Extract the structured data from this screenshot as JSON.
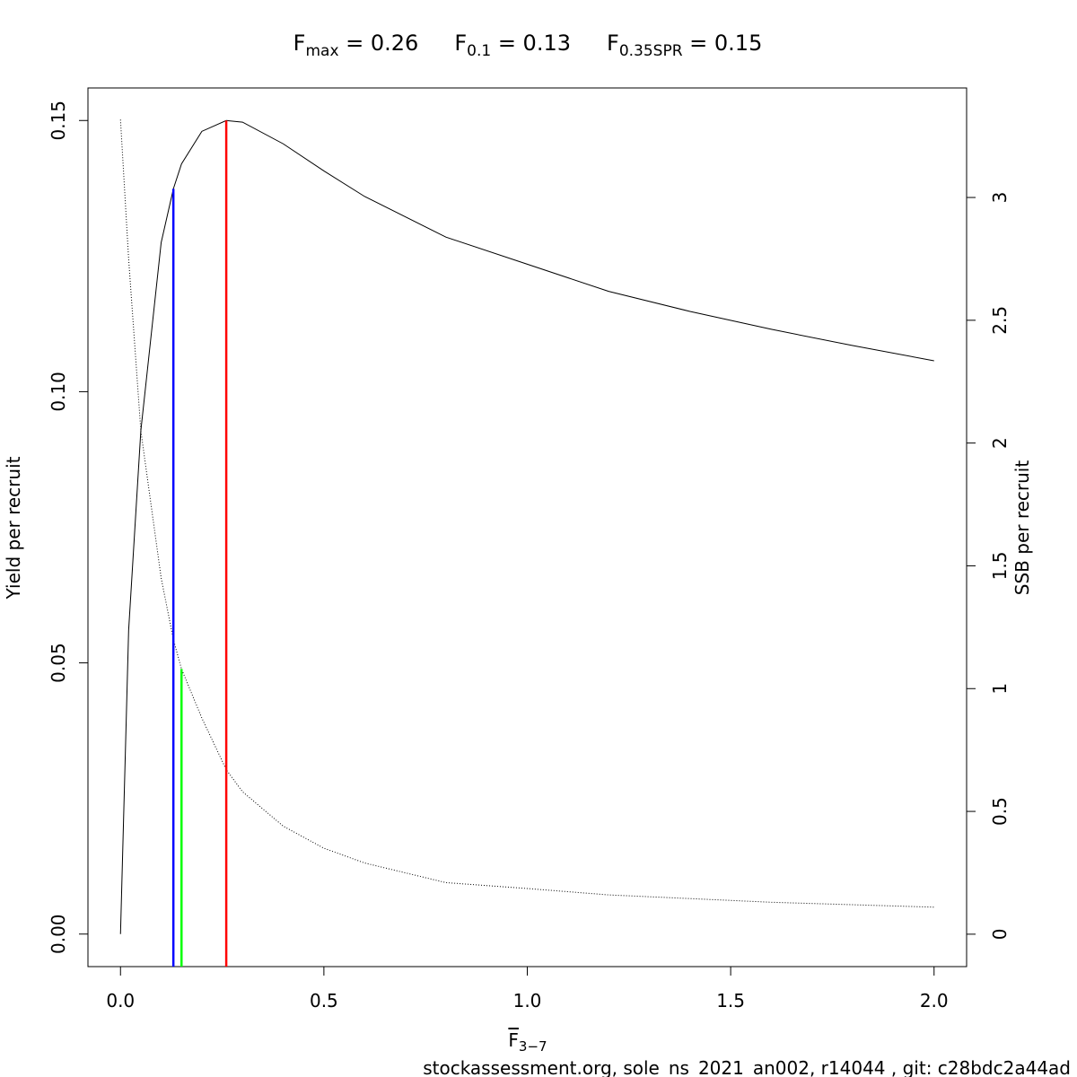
{
  "chart_data": {
    "type": "line",
    "title_parts": [
      {
        "symbol": "F",
        "sub": "max",
        "rest": " = 0.26"
      },
      {
        "symbol": "F",
        "sub": "0.1",
        "rest": " = 0.13"
      },
      {
        "symbol": "F",
        "sub": "0.35SPR",
        "rest": " = 0.15"
      }
    ],
    "xlabel": {
      "symbol": "F",
      "sub": "3−7",
      "overline": true
    },
    "ylabel": "Yield per recruit",
    "y2label": "SSB per recruit",
    "footer": "stockassessment.org, sole_ns_2021_an002, r14044 , git: c28bdc2a44ad",
    "x": [
      0,
      0.02,
      0.05,
      0.1,
      0.13,
      0.15,
      0.2,
      0.26,
      0.3,
      0.4,
      0.5,
      0.6,
      0.8,
      1.0,
      1.2,
      1.4,
      1.6,
      1.8,
      2.0
    ],
    "series": [
      {
        "color": "#000000",
        "linestyle": "solid",
        "axis": "y",
        "values": [
          0,
          0.056,
          0.0928,
          0.1275,
          0.1374,
          0.142,
          0.148,
          0.15,
          0.1497,
          0.1457,
          0.1407,
          0.136,
          0.1285,
          0.1235,
          0.1185,
          0.1148,
          0.1115,
          0.1085,
          0.1057
        ]
      },
      {
        "color": "#000000",
        "linestyle": "dotted",
        "axis": "y2",
        "values": [
          3.317,
          2.75,
          2.05,
          1.45,
          1.2,
          1.08,
          0.88,
          0.67,
          0.58,
          0.44,
          0.35,
          0.29,
          0.21,
          0.186,
          0.16,
          0.145,
          0.13,
          0.12,
          0.11
        ]
      }
    ],
    "reference_lines": [
      {
        "x": 0.13,
        "top": 0.1374,
        "axis": "y",
        "color": "#0000ff"
      },
      {
        "x": 0.15,
        "top": 1.08,
        "axis": "y2",
        "color": "#00ff00"
      },
      {
        "x": 0.26,
        "top": 0.15,
        "axis": "y",
        "color": "#ff0000"
      }
    ],
    "xlim": [
      -0.08,
      2.08
    ],
    "ylim": [
      -0.006,
      0.156
    ],
    "y2lim": [
      -0.132,
      3.446
    ],
    "xticks": [
      {
        "value": 0,
        "label": "0.0"
      },
      {
        "value": 0.5,
        "label": "0.5"
      },
      {
        "value": 1,
        "label": "1.0"
      },
      {
        "value": 1.5,
        "label": "1.5"
      },
      {
        "value": 2,
        "label": "2.0"
      }
    ],
    "yticks": [
      {
        "value": 0,
        "label": "0.00"
      },
      {
        "value": 0.05,
        "label": "0.05"
      },
      {
        "value": 0.1,
        "label": "0.10"
      },
      {
        "value": 0.15,
        "label": "0.15"
      }
    ],
    "y2ticks": [
      0,
      0.5,
      1,
      1.5,
      2,
      2.5,
      3
    ],
    "grid": false
  }
}
